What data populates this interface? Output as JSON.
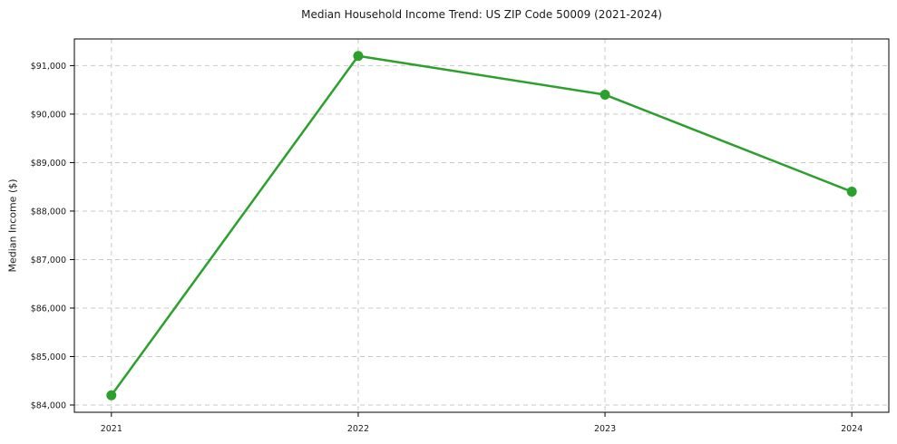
{
  "chart_data": {
    "type": "line",
    "title": "Median Household Income Trend: US ZIP Code 50009 (2021-2024)",
    "xlabel": "",
    "ylabel": "Median Income ($)",
    "x": [
      2021,
      2022,
      2023,
      2024
    ],
    "xtick_labels": [
      "2021",
      "2022",
      "2023",
      "2024"
    ],
    "series": [
      {
        "name": "median-household-income",
        "values": [
          84200,
          91200,
          90400,
          88400
        ],
        "color": "#2ca02c",
        "marker": "circle"
      }
    ],
    "ytick_values": [
      84000,
      85000,
      86000,
      87000,
      88000,
      89000,
      90000,
      91000
    ],
    "ytick_labels": [
      "$84,000",
      "$85,000",
      "$86,000",
      "$87,000",
      "$88,000",
      "$89,000",
      "$90,000",
      "$91,000"
    ],
    "xlim": [
      2020.85,
      2024.15
    ],
    "ylim": [
      83850,
      91550
    ],
    "grid": true,
    "grid_style": "dashed",
    "legend": "none",
    "colors": {
      "background": "#ffffff",
      "grid": "#c9c9c9",
      "spine": "#000000",
      "tick": "#000000",
      "text": "#1a1a1a"
    }
  }
}
